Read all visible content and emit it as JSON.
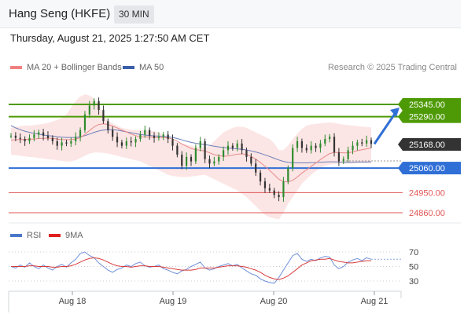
{
  "header": {
    "title": "Hang Seng (HKFE)",
    "timeframe": "30 MIN"
  },
  "date_line": "Thursday, August 21, 2025 1:27:50 AM CET",
  "credit": "Research © 2025 Trading Central",
  "chart_data": [
    {
      "type": "candlestick",
      "legend": [
        {
          "name": "MA 20 + Bollinger Bands",
          "color": "#f08080"
        },
        {
          "name": "MA 50",
          "color": "#3a5fa8"
        }
      ],
      "ylim": [
        24820,
        25420
      ],
      "x_ticks": [
        "Aug 18",
        "Aug 19",
        "Aug 20",
        "Aug 21"
      ],
      "last_price": "25168.00",
      "levels": [
        {
          "label": "25345.00",
          "value": 25345,
          "kind": "resistance",
          "color": "#4e9a06"
        },
        {
          "label": "25290.00",
          "value": 25290,
          "kind": "resistance",
          "color": "#4e9a06"
        },
        {
          "label": "25060.00",
          "value": 25060,
          "kind": "pivot",
          "color": "#2f6fd6"
        },
        {
          "label": "24950.00",
          "value": 24950,
          "kind": "support",
          "color": "#e05555"
        },
        {
          "label": "24860.00",
          "value": 24860,
          "kind": "support",
          "color": "#e05555"
        }
      ],
      "closes": [
        25205,
        25195,
        25190,
        25180,
        25195,
        25210,
        25220,
        25205,
        25195,
        25180,
        25160,
        25175,
        25170,
        25180,
        25200,
        25230,
        25300,
        25340,
        25360,
        25320,
        25270,
        25230,
        25200,
        25175,
        25160,
        25180,
        25175,
        25190,
        25210,
        25230,
        25205,
        25195,
        25200,
        25210,
        25190,
        25160,
        25120,
        25070,
        25110,
        25090,
        25150,
        25180,
        25100,
        25080,
        25090,
        25110,
        25140,
        25160,
        25150,
        25170,
        25140,
        25110,
        25080,
        25040,
        25000,
        24970,
        24960,
        24940,
        24930,
        25000,
        25060,
        25150,
        25180,
        25150,
        25140,
        25160,
        25150,
        25170,
        25190,
        25200,
        25130,
        25090,
        25100,
        25140,
        25160,
        25175,
        25170,
        25185,
        25168
      ],
      "ma20": [
        25185,
        25187,
        25188,
        25188,
        25189,
        25190,
        25192,
        25193,
        25194,
        25193,
        25190,
        25188,
        25187,
        25187,
        25190,
        25196,
        25210,
        25228,
        25245,
        25255,
        25258,
        25255,
        25248,
        25240,
        25230,
        25222,
        25212,
        25205,
        25200,
        25200,
        25199,
        25197,
        25196,
        25197,
        25195,
        25190,
        25180,
        25168,
        25158,
        25148,
        25142,
        25140,
        25136,
        25128,
        25120,
        25115,
        25113,
        25114,
        25118,
        25122,
        25124,
        25120,
        25112,
        25100,
        25085,
        25068,
        25050,
        25030,
        25010,
        25000,
        24998,
        25005,
        25020,
        25038,
        25052,
        25068,
        25082,
        25098,
        25112,
        25125,
        25130,
        25130,
        25128,
        25128,
        25132,
        25138,
        25142,
        25146,
        25150
      ],
      "ma50": [
        25250,
        25240,
        25232,
        25225,
        25220,
        25215,
        25212,
        25208,
        25205,
        25203,
        25200,
        25198,
        25197,
        25197,
        25197,
        25200,
        25205,
        25212,
        25220,
        25226,
        25230,
        25232,
        25232,
        25230,
        25226,
        25222,
        25218,
        25214,
        25210,
        25208,
        25206,
        25204,
        25203,
        25202,
        25200,
        25197,
        25192,
        25186,
        25180,
        25175,
        25171,
        25168,
        25165,
        25162,
        25158,
        25155,
        25152,
        25150,
        25148,
        25146,
        25144,
        25141,
        25137,
        25132,
        25126,
        25119,
        25112,
        25104,
        25096,
        25090,
        25086,
        25084,
        25083,
        25083,
        25083,
        25084,
        25085,
        25086,
        25087,
        25088,
        25088,
        25087,
        25086,
        25086,
        25086,
        25087,
        25087,
        25087,
        25088
      ],
      "bb_upper": [
        25240,
        25245,
        25248,
        25250,
        25250,
        25252,
        25255,
        25258,
        25262,
        25268,
        25275,
        25285,
        25300,
        25330,
        25360,
        25380,
        25390,
        25385,
        25370,
        25340,
        25300,
        25270,
        25260,
        25250,
        25240,
        25235,
        25232,
        25230,
        25230,
        25230,
        25228,
        25225,
        25220,
        25210,
        25195,
        25180,
        25175,
        25170,
        25165,
        25160,
        25155,
        25155,
        25150,
        25160,
        25180,
        25200,
        25220,
        25230,
        25240,
        25245,
        25245,
        25240,
        25230,
        25220,
        25210,
        25200,
        25190,
        25170,
        25140,
        25140,
        25160,
        25190,
        25215,
        25235,
        25250,
        25255,
        25258,
        25260,
        25262,
        25264,
        25262,
        25258,
        25255,
        25252,
        25250,
        25248,
        25246,
        25244,
        25242
      ],
      "bb_lower": [
        25120,
        25118,
        25115,
        25112,
        25110,
        25108,
        25105,
        25103,
        25100,
        25098,
        25095,
        25092,
        25090,
        25090,
        25095,
        25105,
        25115,
        25125,
        25130,
        25130,
        25128,
        25125,
        25120,
        25115,
        25110,
        25105,
        25100,
        25095,
        25090,
        25080,
        25070,
        25060,
        25050,
        25040,
        25030,
        25025,
        25022,
        25020,
        25020,
        25022,
        25025,
        25028,
        25030,
        25020,
        25010,
        25000,
        24990,
        24980,
        24970,
        24960,
        24945,
        24930,
        24910,
        24890,
        24870,
        24850,
        24840,
        24835,
        24830,
        24860,
        24900,
        24930,
        24960,
        24990,
        25010,
        25030,
        25045,
        25060,
        25070,
        25075,
        25078,
        25080,
        25080,
        25080,
        25080,
        25082,
        25082,
        25082,
        25082
      ]
    },
    {
      "type": "line",
      "legend": [
        {
          "name": "RSI",
          "color": "#4a78c8"
        },
        {
          "name": "9MA",
          "color": "#e02020"
        }
      ],
      "ylim": [
        15,
        85
      ],
      "y_ticks": [
        "70",
        "50",
        "30"
      ],
      "rsi": [
        50,
        48,
        52,
        49,
        55,
        50,
        47,
        52,
        48,
        45,
        50,
        53,
        49,
        55,
        60,
        68,
        70,
        65,
        62,
        55,
        50,
        45,
        42,
        46,
        48,
        52,
        50,
        54,
        56,
        51,
        49,
        50,
        52,
        47,
        45,
        42,
        40,
        44,
        46,
        50,
        53,
        56,
        48,
        45,
        47,
        50,
        52,
        54,
        51,
        53,
        48,
        44,
        40,
        38,
        33,
        30,
        28,
        27,
        35,
        45,
        55,
        65,
        68,
        60,
        57,
        60,
        58,
        62,
        64,
        63,
        52,
        47,
        50,
        56,
        59,
        61,
        58,
        62,
        60
      ],
      "rsi_ma": [
        50,
        50,
        50,
        50,
        51,
        51,
        50,
        50,
        50,
        49,
        49,
        50,
        50,
        51,
        53,
        56,
        59,
        61,
        62,
        61,
        59,
        56,
        53,
        51,
        50,
        50,
        49,
        50,
        51,
        51,
        50,
        50,
        50,
        49,
        48,
        47,
        46,
        45,
        45,
        45,
        46,
        48,
        48,
        48,
        48,
        49,
        50,
        51,
        51,
        51,
        50,
        49,
        47,
        45,
        42,
        38,
        35,
        33,
        32,
        34,
        37,
        42,
        47,
        52,
        55,
        58,
        59,
        60,
        60,
        61,
        59,
        57,
        56,
        55,
        55,
        56,
        57,
        58,
        58
      ]
    }
  ]
}
